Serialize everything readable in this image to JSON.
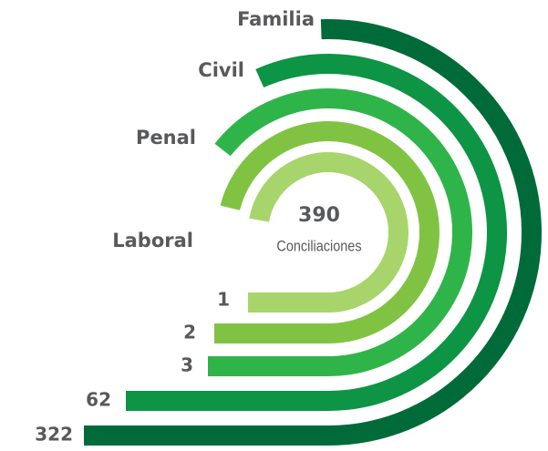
{
  "chart_data": {
    "type": "radial_bar",
    "categories": [
      "Familia",
      "Civil",
      "Penal",
      "Laboral",
      null
    ],
    "values": [
      322,
      62,
      3,
      2,
      1
    ],
    "colors": [
      "#006b38",
      "#0d9444",
      "#2fb44a",
      "#80c342",
      "#a8d46c"
    ],
    "total": 390,
    "total_label": "Conciliaciones"
  }
}
